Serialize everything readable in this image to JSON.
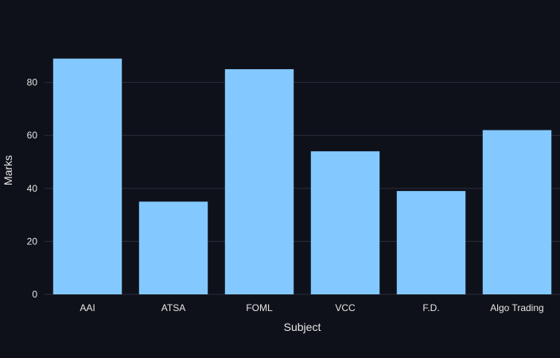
{
  "chart_data": {
    "type": "bar",
    "categories": [
      "AAI",
      "ATSA",
      "FOML",
      "VCC",
      "F.D.",
      "Algo Trading"
    ],
    "values": [
      89,
      35,
      85,
      54,
      39,
      62
    ],
    "title": "",
    "xlabel": "Subject",
    "ylabel": "Marks",
    "ylim": [
      0,
      93.7
    ],
    "yticks": [
      0,
      20,
      40,
      60,
      80
    ],
    "grid": true,
    "bar_color": "#83c9ff",
    "background": "#0f111a",
    "grid_color": "#2a2d3a"
  }
}
